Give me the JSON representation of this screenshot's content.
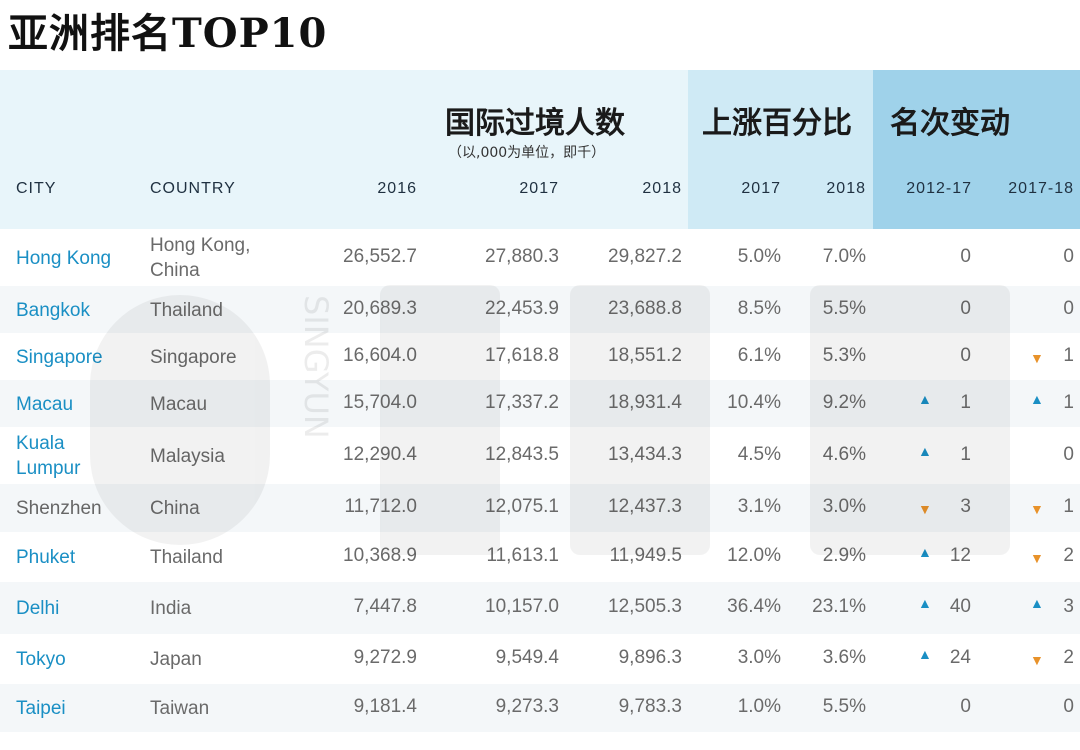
{
  "title": "亚洲排名TOP10",
  "header": {
    "group_arrivals": "国际过境人数",
    "group_arrivals_note": "（以,000为单位，即千）",
    "group_growth": "上涨百分比",
    "group_rank": "名次变动",
    "col_city": "CITY",
    "col_country": "COUNTRY",
    "col_2016": "2016",
    "col_2017": "2017",
    "col_2018": "2018",
    "col_g2017": "2017",
    "col_g2018": "2018",
    "col_r1217": "2012-17",
    "col_r1718": "2017-18"
  },
  "colors": {
    "city_link": "#1a8fc4",
    "arrow_up": "#1a8fc4",
    "arrow_down": "#e8922a",
    "header_band": "#e8f5fa",
    "growth_band": "#cfeaf5",
    "rank_band": "#9fd2ea"
  },
  "icons": {
    "up": "triangle-up",
    "down": "triangle-down"
  },
  "watermark_text": "SINGYUN",
  "chart_data": {
    "type": "table",
    "title": "亚洲排名TOP10",
    "columns": [
      "CITY",
      "COUNTRY",
      "2016",
      "2017",
      "2018",
      "2017",
      "2018",
      "2012-17",
      "2017-18"
    ],
    "rows": [
      {
        "city": "Hong Kong",
        "country": "Hong Kong, China",
        "v2016": "26,552.7",
        "v2017": "27,880.3",
        "v2018": "29,827.2",
        "g2017": "5.0%",
        "g2018": "7.0%",
        "r1217": "0",
        "r1217_dir": "",
        "r1718": "0",
        "r1718_dir": ""
      },
      {
        "city": "Bangkok",
        "country": "Thailand",
        "v2016": "20,689.3",
        "v2017": "22,453.9",
        "v2018": "23,688.8",
        "g2017": "8.5%",
        "g2018": "5.5%",
        "r1217": "0",
        "r1217_dir": "",
        "r1718": "0",
        "r1718_dir": ""
      },
      {
        "city": "Singapore",
        "country": "Singapore",
        "v2016": "16,604.0",
        "v2017": "17,618.8",
        "v2018": "18,551.2",
        "g2017": "6.1%",
        "g2018": "5.3%",
        "r1217": "0",
        "r1217_dir": "",
        "r1718": "1",
        "r1718_dir": "down"
      },
      {
        "city": "Macau",
        "country": "Macau",
        "v2016": "15,704.0",
        "v2017": "17,337.2",
        "v2018": "18,931.4",
        "g2017": "10.4%",
        "g2018": "9.2%",
        "r1217": "1",
        "r1217_dir": "up",
        "r1718": "1",
        "r1718_dir": "up"
      },
      {
        "city": "Kuala Lumpur",
        "country": "Malaysia",
        "v2016": "12,290.4",
        "v2017": "12,843.5",
        "v2018": "13,434.3",
        "g2017": "4.5%",
        "g2018": "4.6%",
        "r1217": "1",
        "r1217_dir": "up",
        "r1718": "0",
        "r1718_dir": ""
      },
      {
        "city": "Shenzhen",
        "country": "China",
        "v2016": "11,712.0",
        "v2017": "12,075.1",
        "v2018": "12,437.3",
        "g2017": "3.1%",
        "g2018": "3.0%",
        "r1217": "3",
        "r1217_dir": "down",
        "r1718": "1",
        "r1718_dir": "down"
      },
      {
        "city": "Phuket",
        "country": "Thailand",
        "v2016": "10,368.9",
        "v2017": "11,613.1",
        "v2018": "11,949.5",
        "g2017": "12.0%",
        "g2018": "2.9%",
        "r1217": "12",
        "r1217_dir": "up",
        "r1718": "2",
        "r1718_dir": "down"
      },
      {
        "city": "Delhi",
        "country": "India",
        "v2016": "7,447.8",
        "v2017": "10,157.0",
        "v2018": "12,505.3",
        "g2017": "36.4%",
        "g2018": "23.1%",
        "r1217": "40",
        "r1217_dir": "up",
        "r1718": "3",
        "r1718_dir": "up"
      },
      {
        "city": "Tokyo",
        "country": "Japan",
        "v2016": "9,272.9",
        "v2017": "9,549.4",
        "v2018": "9,896.3",
        "g2017": "3.0%",
        "g2018": "3.6%",
        "r1217": "24",
        "r1217_dir": "up",
        "r1718": "2",
        "r1718_dir": "down"
      },
      {
        "city": "Taipei",
        "country": "Taiwan",
        "v2016": "9,181.4",
        "v2017": "9,273.3",
        "v2018": "9,783.3",
        "g2017": "1.0%",
        "g2018": "5.5%",
        "r1217": "0",
        "r1217_dir": "",
        "r1718": "0",
        "r1718_dir": ""
      }
    ]
  }
}
